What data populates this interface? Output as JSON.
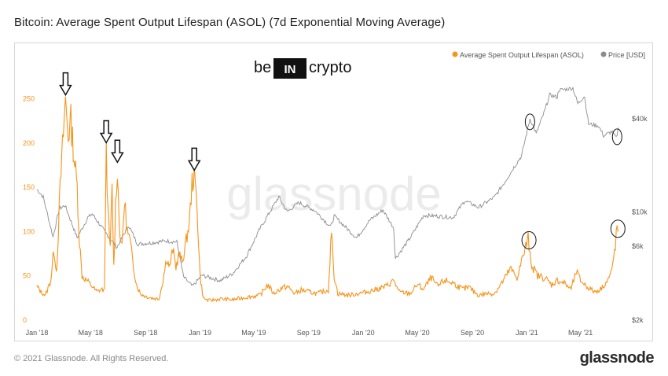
{
  "header": {
    "title": "Bitcoin: Average Spent Output Lifespan (ASOL) (7d Exponential Moving Average)"
  },
  "watermark": "glassnode",
  "brand_logo": {
    "left": "be",
    "middle": "IN",
    "right": "crypto"
  },
  "footer": {
    "copyright": "© 2021 Glassnode. All Rights Reserved.",
    "logo": "glassnode"
  },
  "colors": {
    "asol": "#f7931a",
    "price": "#8c8c8c",
    "annotation": "#111111"
  },
  "chart_data": {
    "type": "line",
    "title": "Bitcoin: Average Spent Output Lifespan (ASOL) (7d Exponential Moving Average)",
    "x_range": [
      "2018-01-01",
      "2021-07-25"
    ],
    "x_ticks": [
      "Jan '18",
      "May '18",
      "Sep '18",
      "Jan '19",
      "May '19",
      "Sep '19",
      "Jan '20",
      "May '20",
      "Sep '20",
      "Jan '21",
      "May '21"
    ],
    "y_left": {
      "ticks": [
        "0",
        "50",
        "100",
        "150",
        "200",
        "250"
      ],
      "range": [
        0,
        270
      ]
    },
    "y_right": {
      "ticks": [
        "$2k",
        "$6k",
        "$10k",
        "$40k"
      ],
      "tick_values": [
        2000,
        6000,
        10000,
        40000
      ],
      "scale": "log",
      "range": [
        2000,
        70000
      ]
    },
    "legend": {
      "position": "top-right",
      "entries": [
        "Average Spent Output Lifespan (ASOL)",
        "Price [USD]"
      ]
    },
    "series": [
      {
        "name": "Average Spent Output Lifespan (ASOL)",
        "axis": "left",
        "points": [
          [
            "2018-01-01",
            38
          ],
          [
            "2018-01-10",
            32
          ],
          [
            "2018-01-20",
            28
          ],
          [
            "2018-02-01",
            45
          ],
          [
            "2018-02-08",
            80
          ],
          [
            "2018-02-14",
            55
          ],
          [
            "2018-02-22",
            150
          ],
          [
            "2018-03-01",
            210
          ],
          [
            "2018-03-06",
            249
          ],
          [
            "2018-03-12",
            210
          ],
          [
            "2018-03-18",
            225
          ],
          [
            "2018-03-25",
            185
          ],
          [
            "2018-04-01",
            150
          ],
          [
            "2018-04-06",
            90
          ],
          [
            "2018-04-12",
            50
          ],
          [
            "2018-04-22",
            45
          ],
          [
            "2018-05-05",
            38
          ],
          [
            "2018-05-15",
            32
          ],
          [
            "2018-05-25",
            35
          ],
          [
            "2018-06-01",
            33
          ],
          [
            "2018-06-05",
            195
          ],
          [
            "2018-06-09",
            120
          ],
          [
            "2018-06-14",
            80
          ],
          [
            "2018-06-18",
            150
          ],
          [
            "2018-06-22",
            60
          ],
          [
            "2018-06-26",
            130
          ],
          [
            "2018-06-30",
            173
          ],
          [
            "2018-07-04",
            110
          ],
          [
            "2018-07-10",
            80
          ],
          [
            "2018-07-16",
            135
          ],
          [
            "2018-07-22",
            100
          ],
          [
            "2018-07-28",
            90
          ],
          [
            "2018-08-05",
            60
          ],
          [
            "2018-08-12",
            40
          ],
          [
            "2018-08-20",
            30
          ],
          [
            "2018-09-01",
            27
          ],
          [
            "2018-09-15",
            25
          ],
          [
            "2018-10-01",
            24
          ],
          [
            "2018-10-10",
            45
          ],
          [
            "2018-10-18",
            70
          ],
          [
            "2018-10-25",
            60
          ],
          [
            "2018-11-01",
            80
          ],
          [
            "2018-11-08",
            60
          ],
          [
            "2018-11-15",
            75
          ],
          [
            "2018-11-22",
            65
          ],
          [
            "2018-12-01",
            90
          ],
          [
            "2018-12-08",
            110
          ],
          [
            "2018-12-14",
            155
          ],
          [
            "2018-12-19",
            164
          ],
          [
            "2018-12-25",
            130
          ],
          [
            "2019-01-01",
            50
          ],
          [
            "2019-01-08",
            25
          ],
          [
            "2019-01-20",
            22
          ],
          [
            "2019-02-15",
            24
          ],
          [
            "2019-03-15",
            23
          ],
          [
            "2019-04-15",
            26
          ],
          [
            "2019-05-15",
            28
          ],
          [
            "2019-06-01",
            40
          ],
          [
            "2019-06-15",
            30
          ],
          [
            "2019-07-01",
            36
          ],
          [
            "2019-07-15",
            38
          ],
          [
            "2019-08-01",
            30
          ],
          [
            "2019-08-15",
            34
          ],
          [
            "2019-09-01",
            32
          ],
          [
            "2019-09-20",
            30
          ],
          [
            "2019-10-15",
            34
          ],
          [
            "2019-10-22",
            100
          ],
          [
            "2019-10-28",
            50
          ],
          [
            "2019-11-05",
            30
          ],
          [
            "2019-12-01",
            28
          ],
          [
            "2019-12-20",
            30
          ],
          [
            "2020-01-10",
            32
          ],
          [
            "2020-02-01",
            35
          ],
          [
            "2020-02-20",
            38
          ],
          [
            "2020-03-10",
            45
          ],
          [
            "2020-03-20",
            32
          ],
          [
            "2020-04-15",
            30
          ],
          [
            "2020-05-01",
            40
          ],
          [
            "2020-05-15",
            35
          ],
          [
            "2020-06-01",
            48
          ],
          [
            "2020-06-15",
            38
          ],
          [
            "2020-07-01",
            45
          ],
          [
            "2020-07-20",
            42
          ],
          [
            "2020-08-10",
            35
          ],
          [
            "2020-08-25",
            37
          ],
          [
            "2020-09-15",
            28
          ],
          [
            "2020-10-01",
            30
          ],
          [
            "2020-10-20",
            30
          ],
          [
            "2020-11-10",
            45
          ],
          [
            "2020-11-25",
            58
          ],
          [
            "2020-12-10",
            48
          ],
          [
            "2020-12-28",
            80
          ],
          [
            "2021-01-04",
            92
          ],
          [
            "2021-01-12",
            62
          ],
          [
            "2021-01-25",
            50
          ],
          [
            "2021-02-10",
            48
          ],
          [
            "2021-02-25",
            40
          ],
          [
            "2021-03-10",
            45
          ],
          [
            "2021-03-25",
            42
          ],
          [
            "2021-04-10",
            35
          ],
          [
            "2021-04-22",
            55
          ],
          [
            "2021-05-01",
            45
          ],
          [
            "2021-05-15",
            38
          ],
          [
            "2021-06-01",
            32
          ],
          [
            "2021-06-15",
            35
          ],
          [
            "2021-07-01",
            45
          ],
          [
            "2021-07-10",
            55
          ],
          [
            "2021-07-18",
            85
          ],
          [
            "2021-07-22",
            105
          ],
          [
            "2021-07-25",
            100
          ]
        ]
      },
      {
        "name": "Price [USD]",
        "axis": "right",
        "points": [
          [
            "2018-01-01",
            14000
          ],
          [
            "2018-01-15",
            12500
          ],
          [
            "2018-02-06",
            6900
          ],
          [
            "2018-02-20",
            10500
          ],
          [
            "2018-03-05",
            11000
          ],
          [
            "2018-04-01",
            6800
          ],
          [
            "2018-04-25",
            9200
          ],
          [
            "2018-05-05",
            9700
          ],
          [
            "2018-06-01",
            7500
          ],
          [
            "2018-06-29",
            5900
          ],
          [
            "2018-07-25",
            8200
          ],
          [
            "2018-08-14",
            6200
          ],
          [
            "2018-09-10",
            6300
          ],
          [
            "2018-10-15",
            6500
          ],
          [
            "2018-11-10",
            6400
          ],
          [
            "2018-11-25",
            3800
          ],
          [
            "2018-12-15",
            3300
          ],
          [
            "2019-01-05",
            3900
          ],
          [
            "2019-02-15",
            3600
          ],
          [
            "2019-03-15",
            4000
          ],
          [
            "2019-04-15",
            5200
          ],
          [
            "2019-05-15",
            7800
          ],
          [
            "2019-06-26",
            12500
          ],
          [
            "2019-07-15",
            10000
          ],
          [
            "2019-08-10",
            11500
          ],
          [
            "2019-09-15",
            10200
          ],
          [
            "2019-10-20",
            8000
          ],
          [
            "2019-10-28",
            9400
          ],
          [
            "2019-12-17",
            6800
          ],
          [
            "2020-01-15",
            8800
          ],
          [
            "2020-02-14",
            10300
          ],
          [
            "2020-03-09",
            7900
          ],
          [
            "2020-03-13",
            5000
          ],
          [
            "2020-04-15",
            6800
          ],
          [
            "2020-05-15",
            9500
          ],
          [
            "2020-06-15",
            9400
          ],
          [
            "2020-07-20",
            9200
          ],
          [
            "2020-08-15",
            11800
          ],
          [
            "2020-09-15",
            10700
          ],
          [
            "2020-10-21",
            12500
          ],
          [
            "2020-11-15",
            16000
          ],
          [
            "2020-12-01",
            19000
          ],
          [
            "2020-12-20",
            23000
          ],
          [
            "2021-01-08",
            40000
          ],
          [
            "2021-01-22",
            32000
          ],
          [
            "2021-02-10",
            45000
          ],
          [
            "2021-02-21",
            57000
          ],
          [
            "2021-03-10",
            55000
          ],
          [
            "2021-03-13",
            61000
          ],
          [
            "2021-04-14",
            63000
          ],
          [
            "2021-04-25",
            50000
          ],
          [
            "2021-05-10",
            56000
          ],
          [
            "2021-05-19",
            37000
          ],
          [
            "2021-06-10",
            36000
          ],
          [
            "2021-06-22",
            31000
          ],
          [
            "2021-07-10",
            33000
          ],
          [
            "2021-07-20",
            30000
          ],
          [
            "2021-07-25",
            35000
          ]
        ]
      }
    ],
    "annotations": {
      "arrows": [
        "2018-03-06",
        "2018-06-05",
        "2018-06-30",
        "2018-12-19"
      ],
      "circles_asol": [
        "2021-01-04",
        "2021-07-22"
      ],
      "circles_price": [
        "2021-01-08",
        "2021-07-22"
      ]
    }
  }
}
